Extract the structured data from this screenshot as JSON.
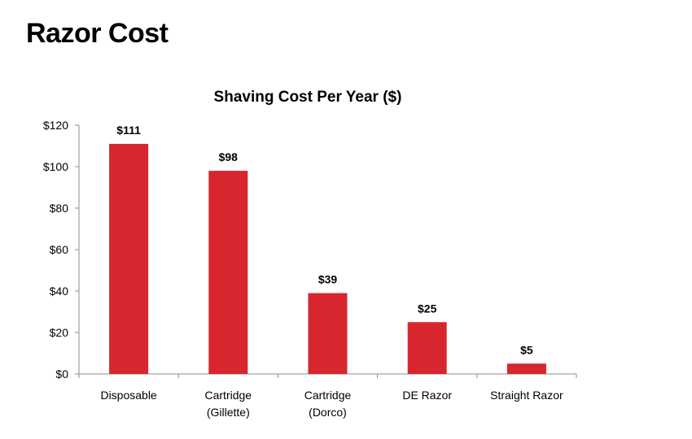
{
  "page": {
    "title": "Razor Cost"
  },
  "chart_data": {
    "type": "bar",
    "title": "Shaving Cost Per Year ($)",
    "xlabel": "",
    "ylabel": "",
    "categories": [
      [
        "Disposable"
      ],
      [
        "Cartridge",
        "(Gillette)"
      ],
      [
        "Cartridge",
        "(Dorco)"
      ],
      [
        "DE Razor"
      ],
      [
        "Straight Razor"
      ]
    ],
    "values": [
      111,
      98,
      39,
      25,
      5
    ],
    "data_labels": [
      "$111",
      "$98",
      "$39",
      "$25",
      "$5"
    ],
    "y_ticks": [
      0,
      20,
      40,
      60,
      80,
      100,
      120
    ],
    "y_tick_labels": [
      "$0",
      "$20",
      "$40",
      "$60",
      "$80",
      "$100",
      "$120"
    ],
    "ylim": [
      0,
      120
    ],
    "grid": false,
    "legend": "none",
    "colors": {
      "bar": "#d7262e",
      "axis": "#8c8c8c"
    }
  }
}
